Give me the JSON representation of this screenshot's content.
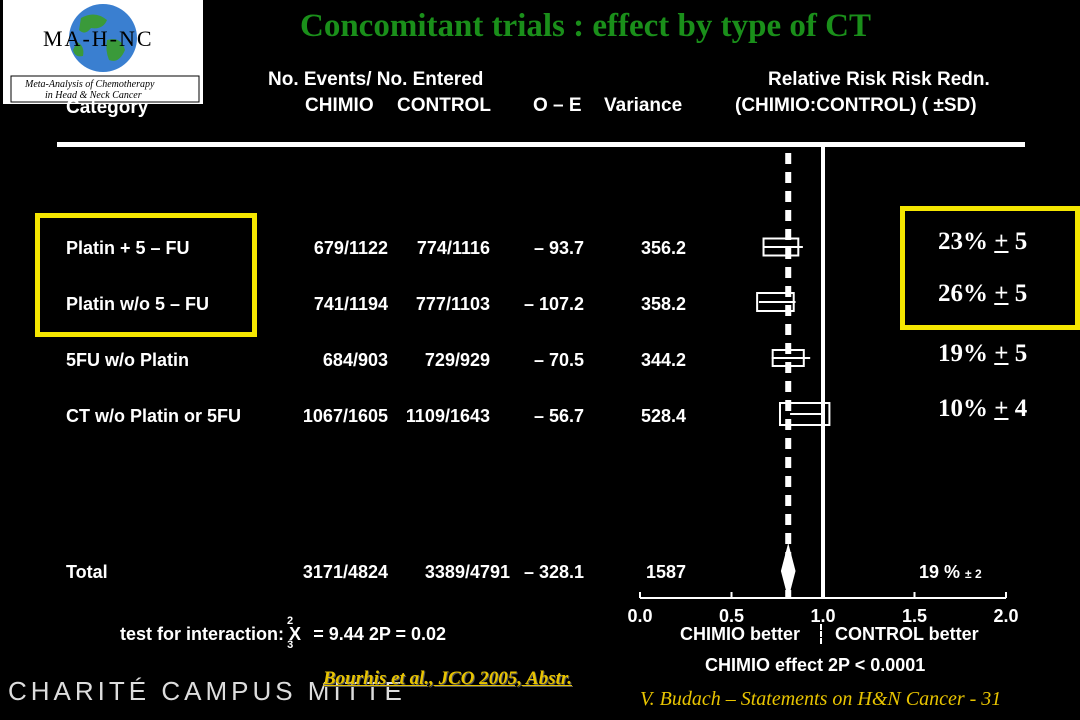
{
  "logo": {
    "text": "MA-H-NC",
    "subtitle_line1": "Meta-Analysis of Chemotherapy",
    "subtitle_line2": "in Head & Neck Cancer"
  },
  "title": "Concomitant  trials : effect by type of CT",
  "headers": {
    "events": "No.  Events/  No.  Entered",
    "category": "Category",
    "chimio": "CHIMIO",
    "control": "CONTROL",
    "oe": "O – E",
    "variance": "Variance",
    "rr1": "Relative  Risk  Risk  Redn.",
    "rr2": "(CHIMIO:CONTROL)  ( ±SD)"
  },
  "rows": [
    {
      "category": "Platin  +  5 – FU",
      "chimio": "679/1122",
      "control": "774/1116",
      "oe": "– 93.7",
      "variance": "356.2",
      "redn": "23%",
      "sd": "5"
    },
    {
      "category": "Platin  w/o  5 – FU",
      "chimio": "741/1194",
      "control": "777/1103",
      "oe": "– 107.2",
      "variance": "358.2",
      "redn": "26%",
      "sd": "5"
    },
    {
      "category": "5FU  w/o  Platin",
      "chimio": "684/903",
      "control": "729/929",
      "oe": "– 70.5",
      "variance": "344.2",
      "redn": "19%",
      "sd": "5"
    },
    {
      "category": "CT  w/o  Platin  or  5FU",
      "chimio": "1067/1605",
      "control": "1109/1643",
      "oe": "– 56.7",
      "variance": "528.4",
      "redn": "10%",
      "sd": "4"
    }
  ],
  "plus_sign": "+",
  "total": {
    "category": "Total",
    "chimio": "3171/4824",
    "control": "3389/4791",
    "oe": "– 328.1",
    "variance": "1587",
    "redn": "19 %",
    "pmsd": "± 2"
  },
  "interaction": {
    "text": "test  for  interaction:  X",
    "sup": "2",
    "sub": "3",
    "eq": "=    9.44     2P  = 0.02"
  },
  "axis": {
    "better_left": "CHIMIO  better",
    "better_right": "CONTROL  better",
    "effect": "CHIMIO  effect  2P < 0.0001"
  },
  "chart_data": {
    "type": "forest",
    "xlim": [
      0.0,
      2.0
    ],
    "xticks": [
      "0.0",
      "0.5",
      "1.0",
      "1.5",
      "2.0"
    ],
    "reference_line": 1.0,
    "overall_line": 0.81,
    "categories": [
      "Platin + 5-FU",
      "Platin w/o 5-FU",
      "5FU w/o Platin",
      "CT w/o Platin or 5FU",
      "Total"
    ],
    "rr": [
      0.77,
      0.74,
      0.81,
      0.9,
      0.81
    ],
    "ci_low": [
      0.67,
      0.65,
      0.72,
      0.82,
      0.77
    ],
    "ci_high": [
      0.89,
      0.85,
      0.93,
      0.99,
      0.85
    ],
    "box_width": [
      0.19,
      0.2,
      0.17,
      0.27
    ],
    "highlight_color": "#f5e600",
    "title_color": "#1a8f1a"
  },
  "footer": {
    "reference": "Bourhis et al., JCO 2005, Abstr.",
    "right": "V. Budach – Statements on H&N Cancer - 31",
    "charite": "CHARITÉ   CAMPUS MITTE"
  }
}
